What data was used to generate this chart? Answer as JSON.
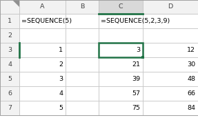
{
  "col_headers": [
    "A",
    "B",
    "C",
    "D"
  ],
  "row_headers": [
    "1",
    "2",
    "3",
    "4",
    "5",
    "6",
    "7"
  ],
  "cell_data": [
    [
      1,
      1,
      "=SEQUENCE(5)",
      "left"
    ],
    [
      1,
      3,
      "=SEQUENCE(5,2,3,9)",
      "left"
    ],
    [
      3,
      1,
      "1",
      "right"
    ],
    [
      4,
      1,
      "2",
      "right"
    ],
    [
      5,
      1,
      "3",
      "right"
    ],
    [
      6,
      1,
      "4",
      "right"
    ],
    [
      7,
      1,
      "5",
      "right"
    ],
    [
      3,
      3,
      "3",
      "right"
    ],
    [
      3,
      4,
      "12",
      "right"
    ],
    [
      4,
      3,
      "21",
      "right"
    ],
    [
      4,
      4,
      "30",
      "right"
    ],
    [
      5,
      3,
      "39",
      "right"
    ],
    [
      5,
      4,
      "48",
      "right"
    ],
    [
      6,
      3,
      "57",
      "right"
    ],
    [
      6,
      4,
      "66",
      "right"
    ],
    [
      7,
      3,
      "75",
      "right"
    ],
    [
      7,
      4,
      "84",
      "right"
    ]
  ],
  "header_bg": "#f2f2f2",
  "selected_col_bg": "#d9d9d9",
  "cell_bg": "#ffffff",
  "grid_color": "#c0c0c0",
  "header_font_color": "#444444",
  "text_color": "#000000",
  "selected_border_color": "#217346",
  "corner_triangle_color": "#909090",
  "font_size": 6.8,
  "col_header_bottom_border": "#217346",
  "row3_left_border": "#217346"
}
